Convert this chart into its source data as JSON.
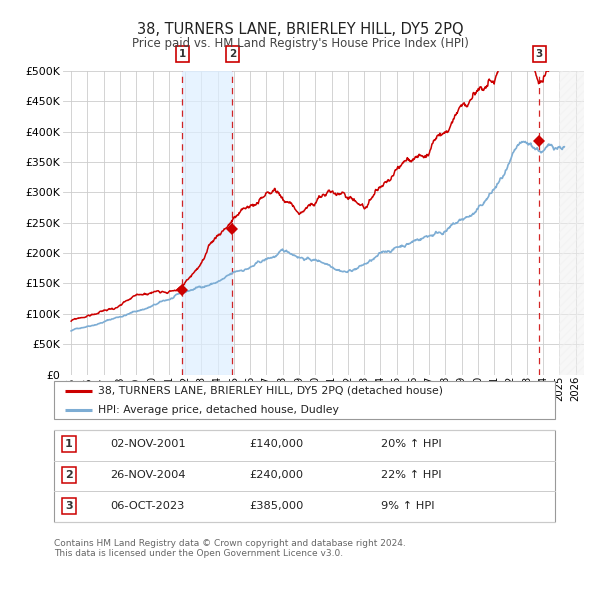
{
  "title": "38, TURNERS LANE, BRIERLEY HILL, DY5 2PQ",
  "subtitle": "Price paid vs. HM Land Registry's House Price Index (HPI)",
  "red_label": "38, TURNERS LANE, BRIERLEY HILL, DY5 2PQ (detached house)",
  "blue_label": "HPI: Average price, detached house, Dudley",
  "transactions": [
    {
      "num": 1,
      "date": "02-NOV-2001",
      "price": 140000,
      "pct": "20%",
      "dir": "↑"
    },
    {
      "num": 2,
      "date": "26-NOV-2004",
      "price": 240000,
      "pct": "22%",
      "dir": "↑"
    },
    {
      "num": 3,
      "date": "06-OCT-2023",
      "price": 385000,
      "pct": "9%",
      "dir": "↑"
    }
  ],
  "transaction_years": [
    2001.84,
    2004.9,
    2023.77
  ],
  "transaction_prices": [
    140000,
    240000,
    385000
  ],
  "ylim": [
    0,
    500000
  ],
  "xlim_start": 1994.5,
  "xlim_end": 2026.5,
  "data_end_year": 2025.0,
  "footnote1": "Contains HM Land Registry data © Crown copyright and database right 2024.",
  "footnote2": "This data is licensed under the Open Government Licence v3.0.",
  "grid_color": "#cccccc",
  "red_color": "#cc0000",
  "blue_color": "#7dadd4",
  "shade_color": "#ddeeff",
  "hatch_color": "#e0e0e0"
}
